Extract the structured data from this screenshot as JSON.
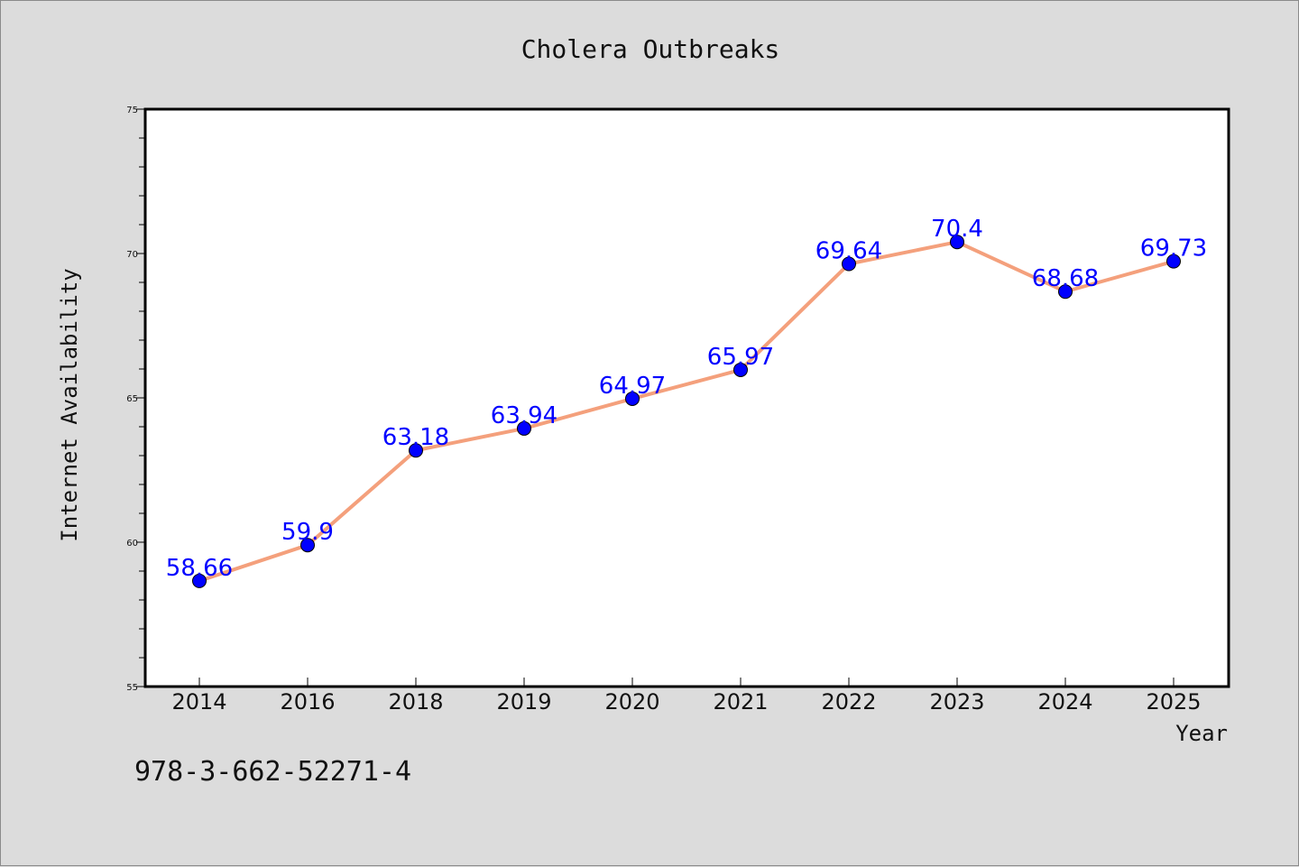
{
  "chart_data": {
    "type": "line",
    "title": "Cholera Outbreaks",
    "xlabel": "Year",
    "ylabel": "Internet Availability",
    "categories": [
      "2014",
      "2016",
      "2018",
      "2019",
      "2020",
      "2021",
      "2022",
      "2023",
      "2024",
      "2025"
    ],
    "series": [
      {
        "values": [
          58.66,
          59.9,
          63.18,
          63.94,
          64.97,
          65.97,
          69.64,
          70.4,
          68.68,
          69.73
        ],
        "line_color": "#f4a07c",
        "marker_color": "#0000ff"
      }
    ],
    "data_labels": [
      "58.66",
      "59.9",
      "63.18",
      "63.94",
      "64.97",
      "65.97",
      "69.64",
      "70.4",
      "68.68",
      "69.73"
    ],
    "ylim": [
      55,
      75
    ],
    "yticks": [
      55,
      60,
      65,
      70,
      75
    ],
    "grid": false,
    "legend": "none"
  },
  "note": "978-3-662-52271-4"
}
